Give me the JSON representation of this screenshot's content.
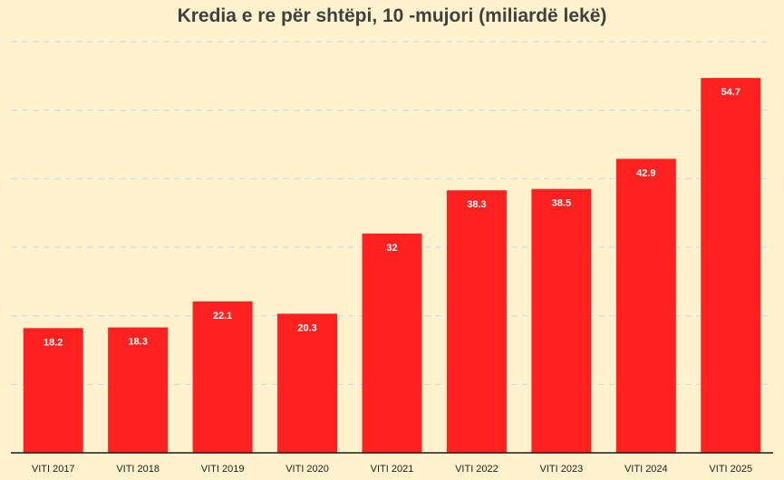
{
  "chart_data": {
    "type": "bar",
    "title": "Kredia e re për shtëpi, 10 -mujori (miliardë lekë)",
    "categories": [
      "VITI 2017",
      "VITI 2018",
      "VITI 2019",
      "VITI 2020",
      "VITI 2021",
      "VITI 2022",
      "VITI 2023",
      "VITI 2024",
      "VITI 2025"
    ],
    "values": [
      18.2,
      18.3,
      22.1,
      20.3,
      32,
      38.3,
      38.5,
      42.9,
      54.7
    ],
    "data_labels": [
      "18.2",
      "18.3",
      "22.1",
      "20.3",
      "32",
      "38.3",
      "38.5",
      "42.9",
      "54.7"
    ],
    "xlabel": "",
    "ylabel": "",
    "ylim": [
      0,
      60
    ],
    "gridlines": [
      10,
      20,
      30,
      40,
      50,
      60
    ],
    "grid": true,
    "legend": "none",
    "colors": {
      "bar": "#FF2020",
      "background": "#FFF2CC",
      "grid": "#C9DCEB",
      "axis": "#1A1A1A",
      "title": "#404040",
      "label": "#FFFFFF",
      "tick": "#222222"
    }
  }
}
